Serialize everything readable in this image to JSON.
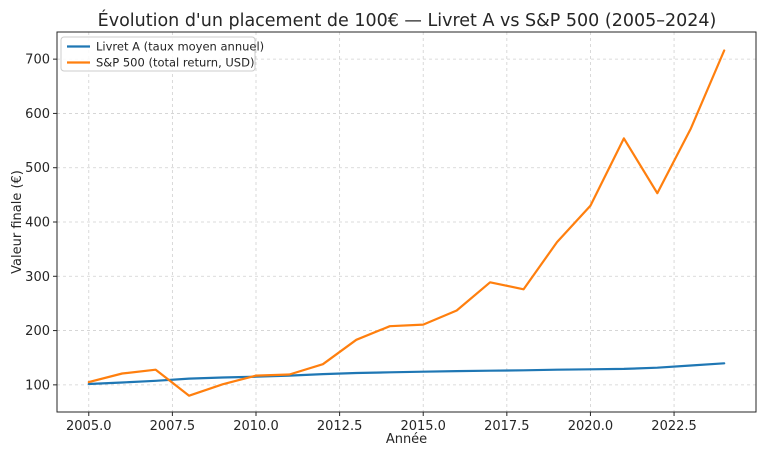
{
  "chart_data": {
    "type": "line",
    "title": "Évolution d'un placement de 100€ — Livret A vs S&P 500 (2005–2024)",
    "xlabel": "Année",
    "ylabel": "Valeur finale (€)",
    "xlim": [
      2004.05,
      2024.95
    ],
    "ylim": [
      50,
      750
    ],
    "xticks": [
      2005.0,
      2007.5,
      2010.0,
      2012.5,
      2015.0,
      2017.5,
      2020.0,
      2022.5
    ],
    "xtick_labels": [
      "2005.0",
      "2007.5",
      "2010.0",
      "2012.5",
      "2015.0",
      "2017.5",
      "2020.0",
      "2022.5"
    ],
    "yticks": [
      100,
      200,
      300,
      400,
      500,
      600,
      700
    ],
    "ytick_labels": [
      "100",
      "200",
      "300",
      "400",
      "500",
      "600",
      "700"
    ],
    "grid": true,
    "legend_position": "top-left",
    "x": [
      2005,
      2006,
      2007,
      2008,
      2009,
      2010,
      2011,
      2012,
      2013,
      2014,
      2015,
      2016,
      2017,
      2018,
      2019,
      2020,
      2021,
      2022,
      2023,
      2024
    ],
    "series": [
      {
        "name": "Livret A (taux moyen annuel)",
        "color": "#1f77b4",
        "values": [
          101.5,
          104.4,
          107.5,
          111.5,
          113.5,
          115.0,
          117.0,
          119.8,
          121.8,
          123.1,
          124.3,
          125.3,
          126.1,
          126.9,
          127.9,
          128.6,
          129.4,
          131.6,
          135.6,
          139.7
        ]
      },
      {
        "name": "S&P 500 (total return, USD)",
        "color": "#ff7f0e",
        "values": [
          105,
          121,
          128,
          80,
          101,
          117,
          119,
          138,
          183,
          208,
          211,
          237,
          289,
          276,
          363,
          430,
          554,
          453,
          572,
          716
        ]
      }
    ]
  }
}
